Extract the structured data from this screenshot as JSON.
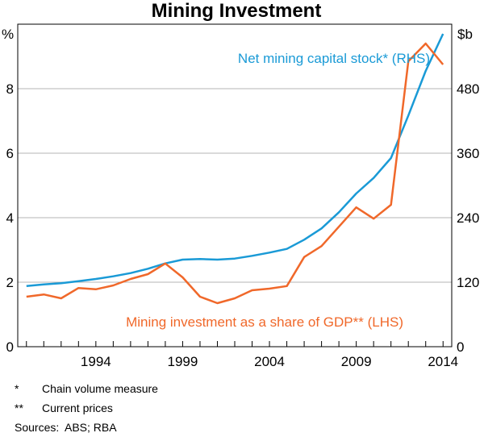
{
  "chart_data": {
    "type": "line",
    "title": "Mining Investment",
    "left_axis": {
      "unit": "%",
      "min": 0,
      "max": 10,
      "ticks": [
        0,
        2,
        4,
        6,
        8
      ]
    },
    "right_axis": {
      "unit": "$b",
      "min": 0,
      "max": 600,
      "ticks": [
        0,
        120,
        240,
        360,
        480
      ]
    },
    "x_axis": {
      "min": 1989.5,
      "max": 2014.5,
      "tick_labels": [
        1994,
        1999,
        2004,
        2009,
        2014
      ],
      "minor_ticks_every_year": true
    },
    "grid": true,
    "series": [
      {
        "name": "Net mining capital stock* (RHS)",
        "axis": "right",
        "color": "#1a9ad6",
        "x": [
          1990,
          1991,
          1992,
          1993,
          1994,
          1995,
          1996,
          1997,
          1998,
          1999,
          2000,
          2001,
          2002,
          2003,
          2004,
          2005,
          2006,
          2007,
          2008,
          2009,
          2010,
          2011,
          2012,
          2013,
          2014
        ],
        "values": [
          113,
          116,
          118,
          122,
          126,
          131,
          137,
          145,
          155,
          162,
          163,
          162,
          164,
          169,
          175,
          182,
          199,
          220,
          250,
          285,
          314,
          351,
          430,
          513,
          582
        ]
      },
      {
        "name": "Mining investment as a share of GDP** (LHS)",
        "axis": "left",
        "color": "#f0682a",
        "x": [
          1990,
          1991,
          1992,
          1993,
          1994,
          1995,
          1996,
          1997,
          1998,
          1999,
          2000,
          2001,
          2002,
          2003,
          2004,
          2005,
          2006,
          2007,
          2008,
          2009,
          2010,
          2011,
          2012,
          2013,
          2014
        ],
        "values": [
          1.55,
          1.62,
          1.5,
          1.82,
          1.78,
          1.9,
          2.1,
          2.25,
          2.58,
          2.15,
          1.55,
          1.35,
          1.5,
          1.75,
          1.8,
          1.88,
          2.78,
          3.12,
          3.72,
          4.32,
          3.97,
          4.4,
          8.85,
          9.4,
          8.75
        ]
      }
    ]
  },
  "footnotes": [
    {
      "mark": "*",
      "text": "Chain volume measure"
    },
    {
      "mark": "**",
      "text": "Current prices"
    }
  ],
  "sources": {
    "label": "Sources:",
    "text": "ABS; RBA"
  }
}
